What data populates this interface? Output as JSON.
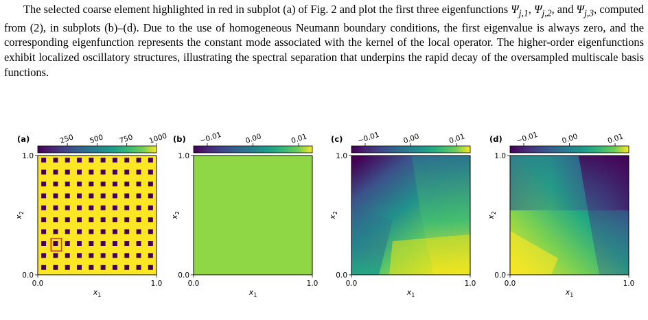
{
  "paragraph": {
    "part1": "The selected coarse element highlighted in red in subplot (a) of Fig. 2 and plot the first three eigenfunctions",
    "psi1": "Ψ",
    "sub1": "j,1",
    "psi2": "Ψ",
    "sub2": "j,2",
    "and_word": ", and",
    "psi3": "Ψ",
    "sub3": "j,3",
    "part2": ", computed from (2), in subplots (b)–(d). Due to the use of homogeneous Neumann boundary conditions, the first eigenvalue is always zero, and the corresponding eigenfunction represents the constant mode associated with the kernel of the local operator. The higher-order eigenfunctions exhibit localized oscillatory structures, illustrating the spectral separation that underpins the rapid decay of the oversampled multiscale basis functions."
  },
  "chart_data": [
    {
      "type": "heatmap",
      "panel_label": "(a)",
      "colorbar_ticks": [
        "250",
        "500",
        "750",
        "1000"
      ],
      "colorbar_range": [
        1,
        1000
      ],
      "x_ticks": [
        "0.0",
        "1.0"
      ],
      "y_ticks": [
        "0.0",
        "1.0"
      ],
      "xlabel": "x1",
      "ylabel": "x2",
      "field": "periodic high-contrast inclusions (value ~1 in inclusions, ~1000 in matrix)",
      "inclusion_grid": [
        10,
        10
      ],
      "highlighted_element": {
        "col": 1,
        "row": 2,
        "color": "#d62728"
      }
    },
    {
      "type": "heatmap",
      "panel_label": "(b)",
      "colorbar_ticks": [
        "−0.01",
        "0.00",
        "0.01"
      ],
      "colorbar_range": [
        -0.013,
        0.013
      ],
      "x_ticks": [
        "0.0",
        "1.0"
      ],
      "y_ticks": [
        "0.0",
        "1.0"
      ],
      "xlabel": "x1",
      "ylabel": "x2",
      "field": "constant eigenfunction Ψj,1"
    },
    {
      "type": "heatmap",
      "panel_label": "(c)",
      "colorbar_ticks": [
        "−0.01",
        "0.00",
        "0.01"
      ],
      "colorbar_range": [
        -0.013,
        0.013
      ],
      "x_ticks": [
        "0.0",
        "1.0"
      ],
      "y_ticks": [
        "0.0",
        "1.0"
      ],
      "xlabel": "x1",
      "ylabel": "x2",
      "field": "eigenfunction Ψj,2 (low top-left, high bottom-right)"
    },
    {
      "type": "heatmap",
      "panel_label": "(d)",
      "colorbar_ticks": [
        "−0.01",
        "0.00",
        "0.01"
      ],
      "colorbar_range": [
        -0.013,
        0.013
      ],
      "x_ticks": [
        "0.0",
        "1.0"
      ],
      "y_ticks": [
        "0.0",
        "1.0"
      ],
      "xlabel": "x1",
      "ylabel": "x2",
      "field": "eigenfunction Ψj,3 (high left/bottom-left, low top-right)"
    }
  ],
  "colors": {
    "viridis_low": "#440154",
    "viridis_high": "#fde725",
    "constant_mode": "#8fd744",
    "highlight": "#d62728"
  }
}
